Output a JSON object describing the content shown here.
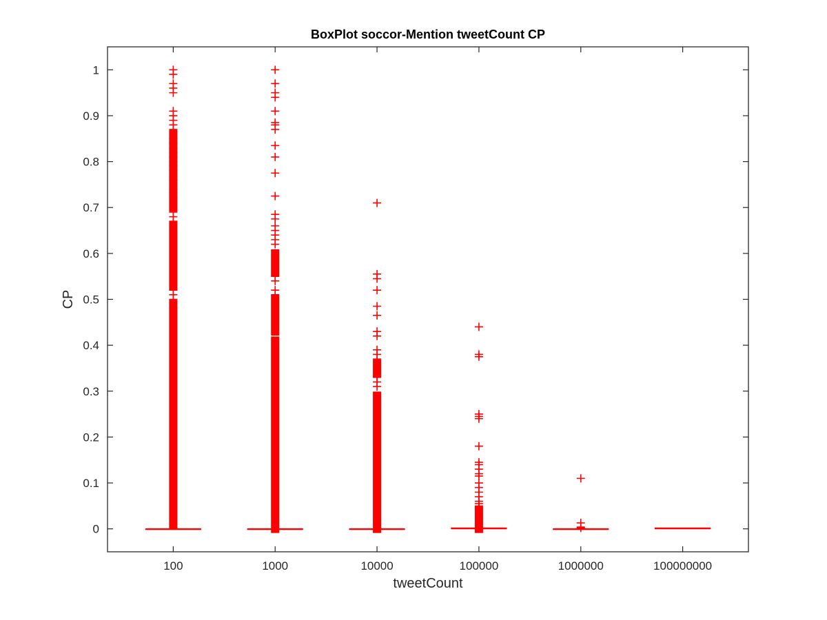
{
  "chart_data": {
    "type": "box",
    "title": "BoxPlot soccor-Mention tweetCount CP",
    "xlabel": "tweetCount",
    "ylabel": "CP",
    "categories": [
      "100",
      "1000",
      "10000",
      "100000",
      "1000000",
      "100000000"
    ],
    "ylim": [
      -0.05,
      1.05
    ],
    "yticks": [
      0,
      0.1,
      0.2,
      0.3,
      0.4,
      0.5,
      0.6,
      0.7,
      0.8,
      0.9,
      1
    ],
    "ytick_labels": [
      "0",
      "0.1",
      "0.2",
      "0.3",
      "0.4",
      "0.5",
      "0.6",
      "0.7",
      "0.8",
      "0.9",
      "1"
    ],
    "grid": false,
    "outlier_color": "#ff0000",
    "box_color": "#ff0000",
    "boxes": [
      {
        "category": "100",
        "q1": 0,
        "median": 0,
        "q3": 0,
        "whisker_low": 0,
        "whisker_high": 0,
        "outlier_dense_ranges": [
          [
            0.01,
            0.49
          ],
          [
            0.53,
            0.66
          ],
          [
            0.7,
            0.86
          ]
        ],
        "outliers": [
          1.0,
          0.99,
          0.97,
          0.96,
          0.95,
          0.91,
          0.9,
          0.89,
          0.88,
          0.87,
          0.85,
          0.84,
          0.83,
          0.82,
          0.81,
          0.8,
          0.79,
          0.78,
          0.76,
          0.74,
          0.72,
          0.69,
          0.68,
          0.67,
          0.52,
          0.51,
          0.5
        ]
      },
      {
        "category": "1000",
        "q1": 0,
        "median": 0,
        "q3": 0,
        "whisker_low": 0,
        "whisker_high": 0,
        "outlier_dense_ranges": [
          [
            0.0,
            0.41
          ],
          [
            0.43,
            0.5
          ],
          [
            0.56,
            0.6
          ]
        ],
        "outliers": [
          1.0,
          0.97,
          0.95,
          0.94,
          0.91,
          0.885,
          0.88,
          0.87,
          0.835,
          0.81,
          0.775,
          0.725,
          0.685,
          0.675,
          0.66,
          0.65,
          0.64,
          0.63,
          0.62,
          0.55,
          0.54,
          0.52,
          0.51
        ]
      },
      {
        "category": "10000",
        "q1": 0,
        "median": 0,
        "q3": 0,
        "whisker_low": 0,
        "whisker_high": 0,
        "outlier_dense_ranges": [
          [
            0.0,
            0.26
          ],
          [
            0.28,
            0.29
          ],
          [
            0.34,
            0.36
          ]
        ],
        "outliers": [
          0.71,
          0.555,
          0.545,
          0.52,
          0.485,
          0.465,
          0.43,
          0.42,
          0.39,
          0.38,
          0.37,
          0.33,
          0.32,
          0.31,
          0.27
        ]
      },
      {
        "category": "100000",
        "q1": 0,
        "median": 0.001,
        "q3": 0.002,
        "whisker_low": 0,
        "whisker_high": 0.004,
        "outlier_dense_ranges": [
          [
            0.0,
            0.04
          ]
        ],
        "outliers": [
          0.44,
          0.38,
          0.375,
          0.25,
          0.245,
          0.24,
          0.18,
          0.145,
          0.14,
          0.13,
          0.12,
          0.115,
          0.1,
          0.09,
          0.08,
          0.07,
          0.06,
          0.055,
          0.05,
          0.045
        ]
      },
      {
        "category": "1000000",
        "q1": 0,
        "median": 0,
        "q3": 0,
        "whisker_low": 0,
        "whisker_high": 0,
        "outlier_dense_ranges": [],
        "outliers": [
          0.11,
          0.013,
          0.004,
          0.002
        ]
      },
      {
        "category": "100000000",
        "q1": 0,
        "median": 0.001,
        "q3": 0.002,
        "whisker_low": 0,
        "whisker_high": 0.002,
        "outlier_dense_ranges": [],
        "outliers": []
      }
    ]
  }
}
